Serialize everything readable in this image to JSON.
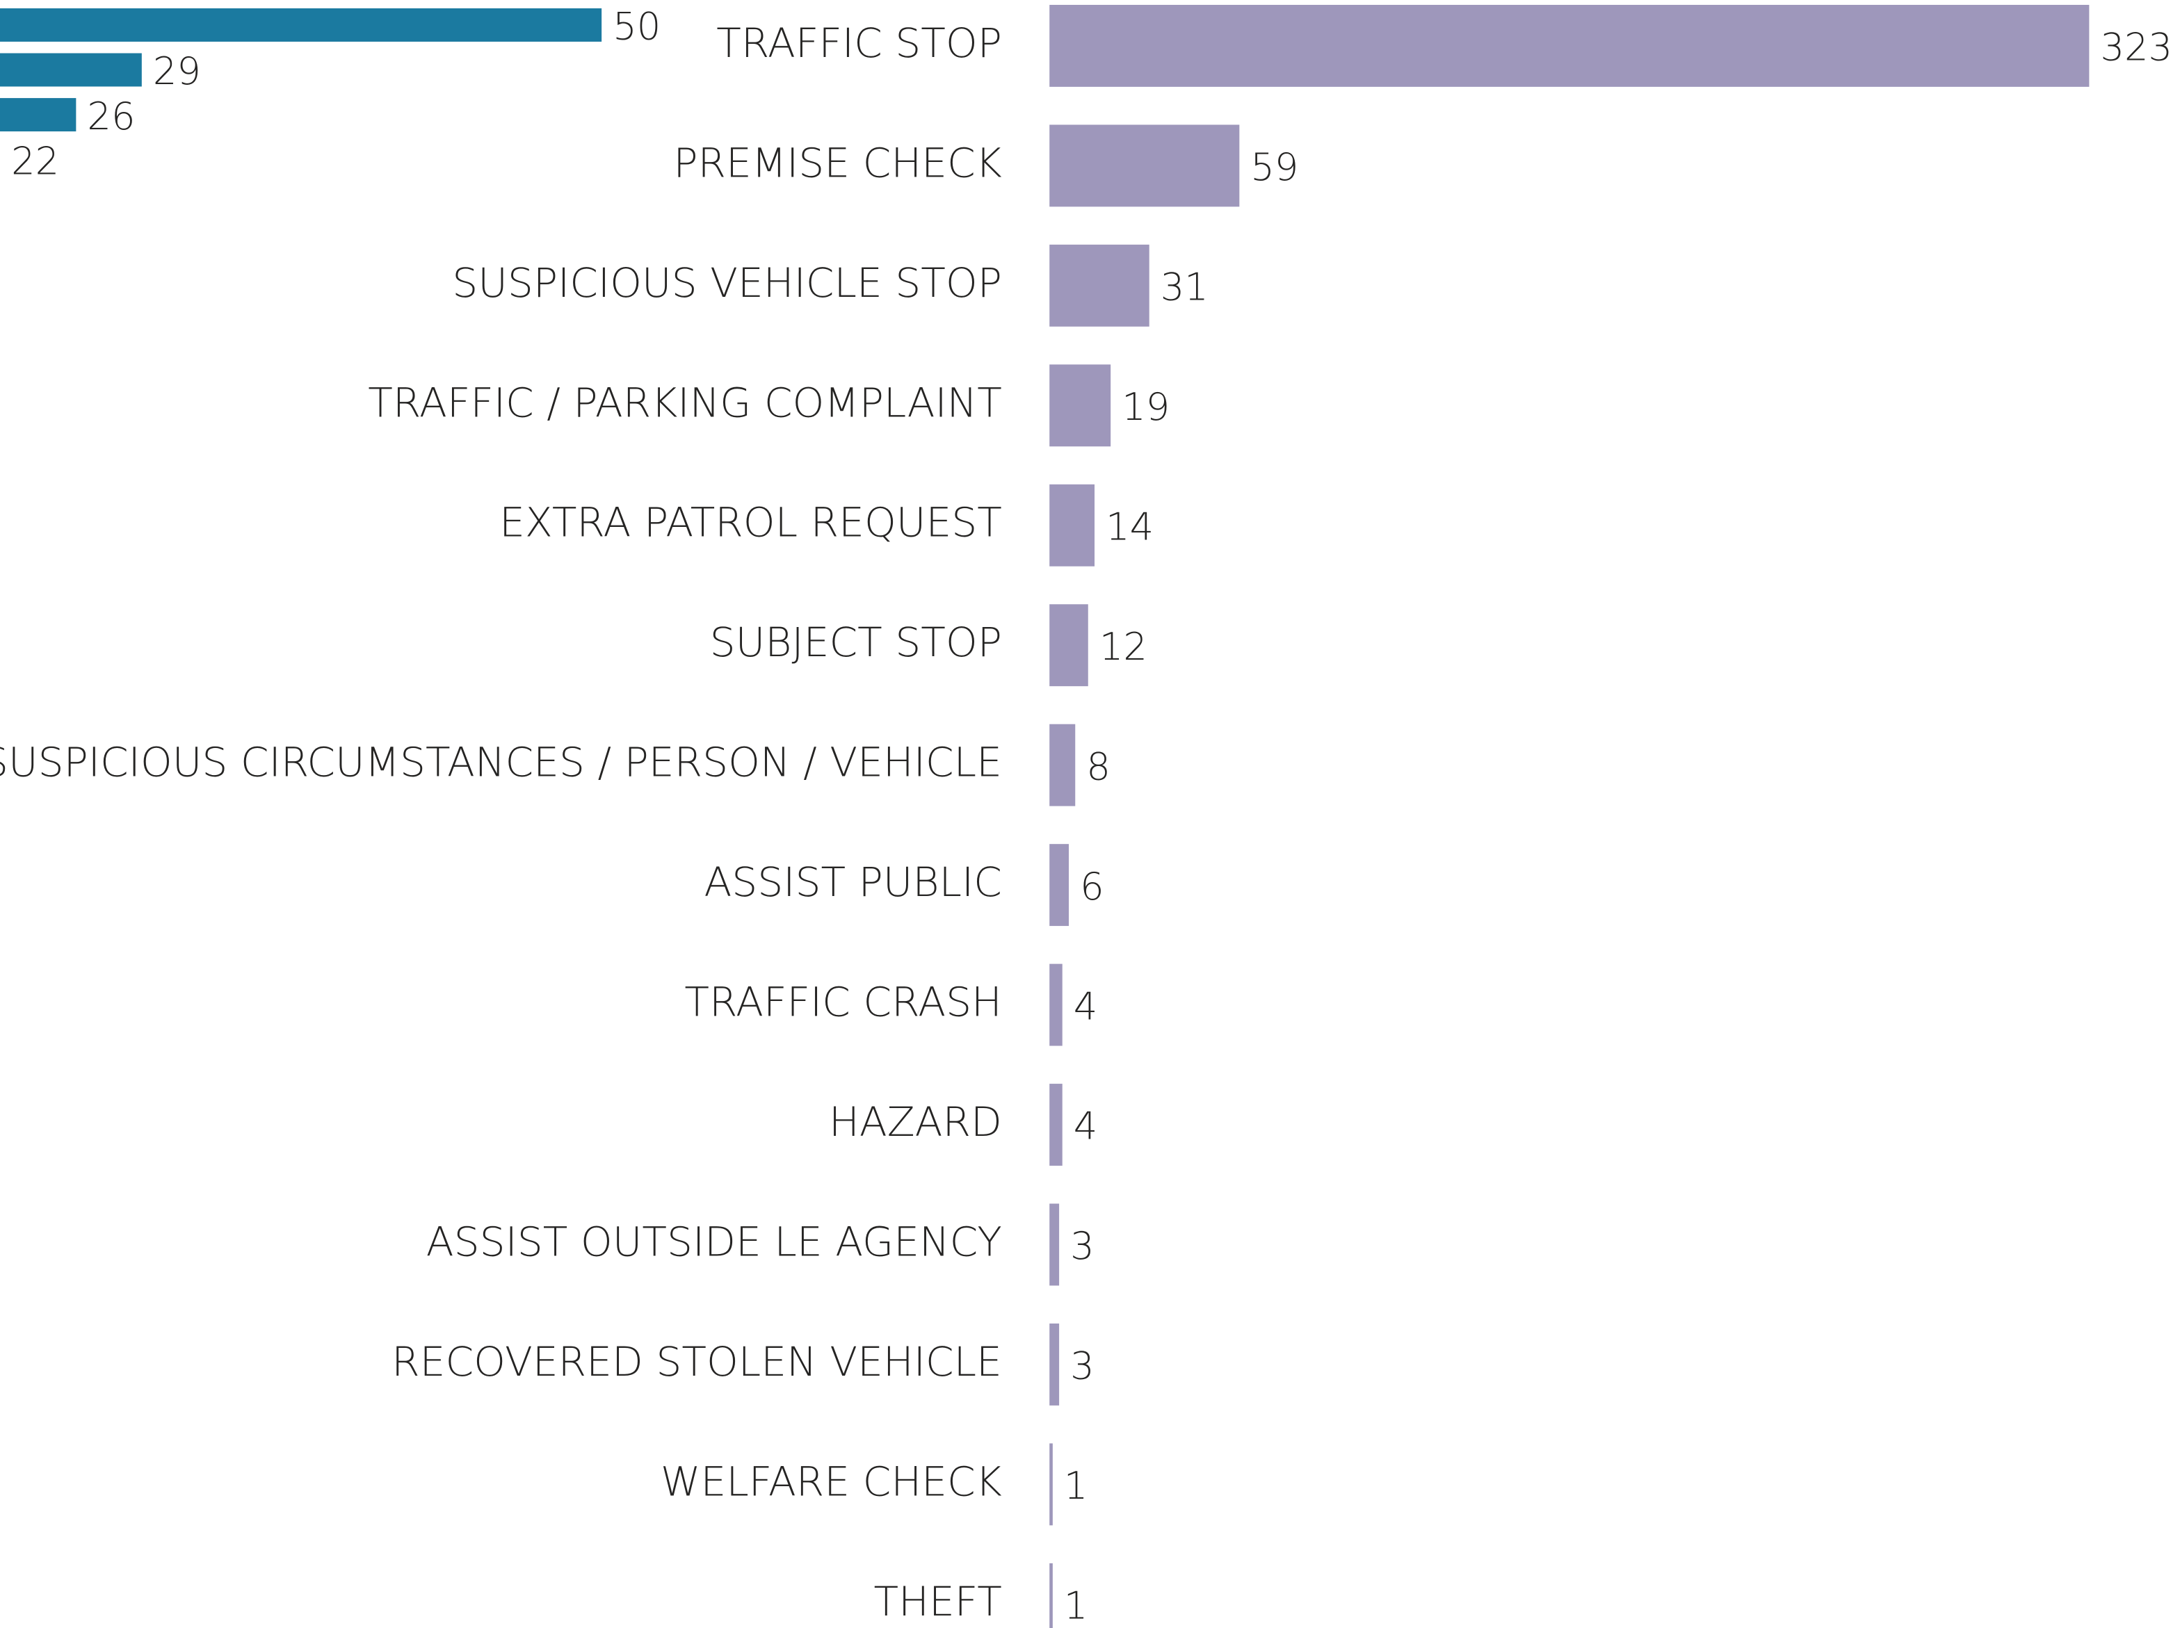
{
  "chart_data": [
    {
      "type": "bar",
      "categories": [
        null,
        null,
        null,
        null
      ],
      "values": [
        50,
        29,
        26,
        22
      ],
      "color": "#1b7aa0"
    },
    {
      "type": "bar",
      "categories": [
        "TRAFFIC STOP",
        "PREMISE CHECK",
        "SUSPICIOUS VEHICLE STOP",
        "TRAFFIC / PARKING COMPLAINT",
        "EXTRA PATROL REQUEST",
        "SUBJECT STOP",
        "SUSPICIOUS CIRCUMSTANCES / PERSON / VEHICLE",
        "ASSIST PUBLIC",
        "TRAFFIC CRASH",
        "HAZARD",
        "ASSIST OUTSIDE LE AGENCY",
        "RECOVERED STOLEN VEHICLE",
        "WELFARE CHECK",
        "THEFT"
      ],
      "values": [
        323,
        59,
        31,
        19,
        14,
        12,
        8,
        6,
        4,
        4,
        3,
        3,
        1,
        1
      ],
      "color": "#9e97bb"
    }
  ]
}
